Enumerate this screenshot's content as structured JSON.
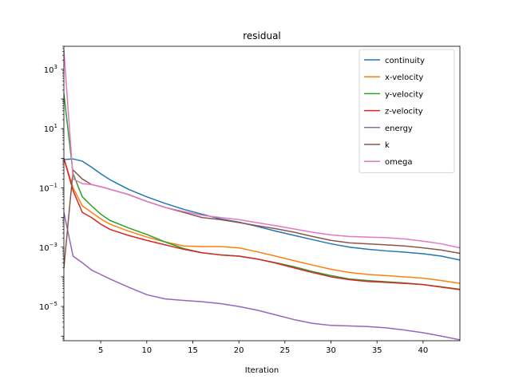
{
  "chart_data": {
    "type": "line",
    "title": "residual",
    "xlabel": "Iteration",
    "ylabel": "",
    "xlim": [
      1,
      44
    ],
    "ylim": [
      7e-07,
      6000
    ],
    "yscale": "log",
    "grid": false,
    "legend_position": "top-right",
    "xticks": [
      5,
      10,
      15,
      20,
      25,
      30,
      35,
      40
    ],
    "yticks": [
      {
        "value": 1e-05,
        "base": "10",
        "exp": "−5"
      },
      {
        "value": 0.001,
        "base": "10",
        "exp": "−3"
      },
      {
        "value": 0.1,
        "base": "10",
        "exp": "−1"
      },
      {
        "value": 10,
        "base": "10",
        "exp": "1"
      },
      {
        "value": 1000,
        "base": "10",
        "exp": "3"
      }
    ],
    "series": [
      {
        "name": "continuity",
        "color": "#1f77b4",
        "x": [
          1,
          2,
          3,
          4,
          5,
          6,
          8,
          10,
          12,
          14,
          16,
          18,
          20,
          22,
          24,
          26,
          28,
          30,
          32,
          34,
          36,
          38,
          40,
          42,
          44
        ],
        "y": [
          0.9,
          0.95,
          0.8,
          0.5,
          0.3,
          0.19,
          0.09,
          0.05,
          0.03,
          0.019,
          0.013,
          0.009,
          0.007,
          0.005,
          0.0035,
          0.0025,
          0.0018,
          0.0013,
          0.001,
          0.00085,
          0.00075,
          0.00068,
          0.0006,
          0.0005,
          0.00037
        ]
      },
      {
        "name": "x-velocity",
        "color": "#ff7f0e",
        "x": [
          1,
          2,
          3,
          4,
          5,
          6,
          8,
          10,
          12,
          14,
          16,
          18,
          20,
          22,
          24,
          26,
          28,
          30,
          32,
          34,
          36,
          38,
          40,
          42,
          44
        ],
        "y": [
          1.0,
          0.1,
          0.025,
          0.015,
          0.009,
          0.006,
          0.0035,
          0.0022,
          0.0015,
          0.0011,
          0.00105,
          0.00105,
          0.00095,
          0.0007,
          0.0005,
          0.00035,
          0.00025,
          0.00018,
          0.00014,
          0.00012,
          0.00011,
          0.0001,
          9e-05,
          7.5e-05,
          6e-05
        ]
      },
      {
        "name": "y-velocity",
        "color": "#2ca02c",
        "x": [
          1,
          2,
          3,
          4,
          5,
          6,
          8,
          10,
          12,
          14,
          16,
          18,
          20,
          22,
          24,
          26,
          28,
          30,
          32,
          34,
          36,
          38,
          40,
          42,
          44
        ],
        "y": [
          150,
          0.3,
          0.05,
          0.025,
          0.013,
          0.008,
          0.0045,
          0.0027,
          0.0015,
          0.0009,
          0.00065,
          0.00055,
          0.0005,
          0.0004,
          0.0003,
          0.00022,
          0.00015,
          0.00011,
          8.5e-05,
          7.5e-05,
          6.8e-05,
          6.2e-05,
          5.5e-05,
          4.6e-05,
          3.8e-05
        ]
      },
      {
        "name": "z-velocity",
        "color": "#d62728",
        "x": [
          1,
          2,
          3,
          4,
          5,
          6,
          8,
          10,
          12,
          14,
          16,
          18,
          20,
          22,
          24,
          26,
          28,
          30,
          32,
          34,
          36,
          38,
          40,
          42,
          44
        ],
        "y": [
          1.0,
          0.08,
          0.015,
          0.01,
          0.006,
          0.004,
          0.0025,
          0.0017,
          0.0012,
          0.00085,
          0.00065,
          0.00055,
          0.0005,
          0.0004,
          0.00029,
          0.0002,
          0.00014,
          0.0001,
          8e-05,
          7e-05,
          6.5e-05,
          6e-05,
          5.5e-05,
          4.5e-05,
          3.7e-05
        ]
      },
      {
        "name": "energy",
        "color": "#9467bd",
        "x": [
          1,
          2,
          3,
          4,
          5,
          6,
          8,
          10,
          12,
          14,
          16,
          18,
          20,
          22,
          24,
          26,
          28,
          30,
          32,
          34,
          36,
          38,
          40,
          42,
          44
        ],
        "y": [
          0.015,
          0.0005,
          0.0003,
          0.00017,
          0.00012,
          8.5e-05,
          4.5e-05,
          2.5e-05,
          1.8e-05,
          1.6e-05,
          1.45e-05,
          1.25e-05,
          1e-05,
          7.5e-06,
          5.2e-06,
          3.6e-06,
          2.7e-06,
          2.3e-06,
          2.2e-06,
          2.1e-06,
          1.9e-06,
          1.6e-06,
          1.3e-06,
          1e-06,
          7.5e-07
        ]
      },
      {
        "name": "k",
        "color": "#8c564b",
        "x": [
          1,
          2,
          3,
          4,
          5,
          6,
          8,
          10,
          12,
          14,
          16,
          18,
          20,
          22,
          24,
          26,
          28,
          30,
          32,
          34,
          36,
          38,
          40,
          42,
          44
        ],
        "y": [
          0.0002,
          0.4,
          0.2,
          0.13,
          0.11,
          0.09,
          0.06,
          0.035,
          0.022,
          0.015,
          0.01,
          0.0085,
          0.0068,
          0.0053,
          0.0042,
          0.0032,
          0.0023,
          0.0017,
          0.0014,
          0.0013,
          0.0012,
          0.0011,
          0.00095,
          0.0008,
          0.00062
        ]
      },
      {
        "name": "omega",
        "color": "#e377c2",
        "x": [
          1,
          2,
          3,
          4,
          5,
          6,
          8,
          10,
          12,
          14,
          16,
          18,
          20,
          22,
          24,
          26,
          28,
          30,
          32,
          34,
          36,
          38,
          40,
          42,
          44
        ],
        "y": [
          4500,
          0.2,
          0.14,
          0.13,
          0.11,
          0.09,
          0.06,
          0.035,
          0.022,
          0.016,
          0.012,
          0.01,
          0.0085,
          0.0067,
          0.0053,
          0.0041,
          0.0032,
          0.0026,
          0.0023,
          0.0022,
          0.0021,
          0.0019,
          0.0016,
          0.0013,
          0.00095
        ]
      }
    ]
  }
}
